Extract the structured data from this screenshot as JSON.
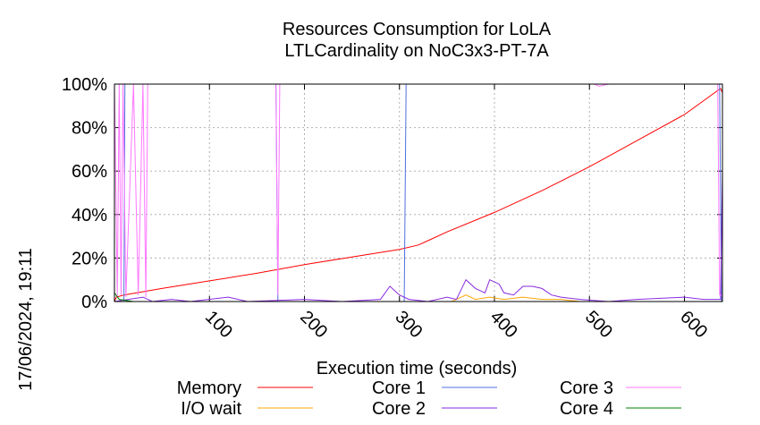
{
  "chart_data": {
    "type": "line",
    "title": "Resources Consumption for LoLA",
    "subtitle": "LTLCardinality on NoC3x3-PT-7A",
    "xlabel": "Execution time (seconds)",
    "ylabel": "",
    "side_label": "17/06/2024, 19:11",
    "xlim": [
      0,
      640
    ],
    "ylim": [
      0,
      100
    ],
    "x_ticks": [
      100,
      200,
      300,
      400,
      500,
      600
    ],
    "y_ticks": [
      0,
      20,
      40,
      60,
      80,
      100
    ],
    "y_tick_labels": [
      "0%",
      "20%",
      "40%",
      "60%",
      "80%",
      "100%"
    ],
    "grid": true,
    "legend_position": "bottom",
    "series": [
      {
        "name": "Memory",
        "color": "#ff0000",
        "points": [
          [
            0,
            0
          ],
          [
            2,
            2
          ],
          [
            10,
            3
          ],
          [
            50,
            6
          ],
          [
            100,
            9.5
          ],
          [
            150,
            13
          ],
          [
            200,
            17
          ],
          [
            250,
            20.5
          ],
          [
            300,
            24
          ],
          [
            320,
            26
          ],
          [
            330,
            28
          ],
          [
            350,
            32
          ],
          [
            400,
            41
          ],
          [
            450,
            51
          ],
          [
            500,
            62
          ],
          [
            550,
            74
          ],
          [
            600,
            86
          ],
          [
            638,
            98
          ],
          [
            640,
            96
          ]
        ]
      },
      {
        "name": "I/O wait",
        "color": "#ffa500",
        "points": [
          [
            0,
            0
          ],
          [
            100,
            0
          ],
          [
            200,
            0
          ],
          [
            300,
            0
          ],
          [
            355,
            0
          ],
          [
            370,
            3
          ],
          [
            380,
            1
          ],
          [
            395,
            2
          ],
          [
            410,
            1
          ],
          [
            430,
            2
          ],
          [
            450,
            1
          ],
          [
            470,
            1
          ],
          [
            490,
            0
          ],
          [
            550,
            0
          ],
          [
            640,
            0
          ]
        ]
      },
      {
        "name": "Core 1",
        "color": "#4f6fe0",
        "points": [
          [
            0,
            0
          ],
          [
            10,
            0
          ],
          [
            11,
            100
          ],
          [
            170,
            100
          ],
          [
            172,
            0
          ],
          [
            305,
            0
          ],
          [
            307,
            100
          ],
          [
            637,
            100
          ],
          [
            639,
            0
          ],
          [
            640,
            0
          ]
        ]
      },
      {
        "name": "Core 2",
        "color": "#8a2be2",
        "points": [
          [
            0,
            0
          ],
          [
            30,
            2
          ],
          [
            40,
            0
          ],
          [
            60,
            1
          ],
          [
            80,
            0
          ],
          [
            120,
            2
          ],
          [
            140,
            0
          ],
          [
            200,
            1
          ],
          [
            240,
            0
          ],
          [
            280,
            1
          ],
          [
            290,
            7
          ],
          [
            300,
            3
          ],
          [
            310,
            1
          ],
          [
            330,
            0
          ],
          [
            350,
            2
          ],
          [
            360,
            1
          ],
          [
            370,
            10
          ],
          [
            380,
            6
          ],
          [
            390,
            4
          ],
          [
            395,
            10
          ],
          [
            405,
            8
          ],
          [
            410,
            4
          ],
          [
            420,
            3
          ],
          [
            430,
            7
          ],
          [
            440,
            7
          ],
          [
            450,
            6
          ],
          [
            460,
            3
          ],
          [
            470,
            2
          ],
          [
            490,
            1
          ],
          [
            520,
            0
          ],
          [
            550,
            1
          ],
          [
            600,
            2
          ],
          [
            620,
            1
          ],
          [
            638,
            1
          ],
          [
            640,
            60
          ]
        ]
      },
      {
        "name": "Core 3",
        "color": "#ff77ff",
        "points": [
          [
            0,
            100
          ],
          [
            3,
            2
          ],
          [
            5,
            100
          ],
          [
            7,
            3
          ],
          [
            9,
            100
          ],
          [
            12,
            2
          ],
          [
            20,
            100
          ],
          [
            25,
            3
          ],
          [
            30,
            100
          ],
          [
            33,
            2
          ],
          [
            35,
            100
          ],
          [
            170,
            100
          ],
          [
            172,
            3
          ],
          [
            174,
            100
          ],
          [
            505,
            100
          ],
          [
            510,
            99
          ],
          [
            520,
            100
          ],
          [
            635,
            100
          ],
          [
            637,
            3
          ],
          [
            640,
            3
          ]
        ]
      },
      {
        "name": "Core 4",
        "color": "#008000",
        "points": [
          [
            0,
            4
          ],
          [
            5,
            1
          ],
          [
            20,
            0
          ],
          [
            100,
            0
          ],
          [
            200,
            0
          ],
          [
            300,
            0
          ],
          [
            400,
            0
          ],
          [
            500,
            0
          ],
          [
            600,
            0
          ],
          [
            640,
            0
          ]
        ]
      }
    ]
  }
}
